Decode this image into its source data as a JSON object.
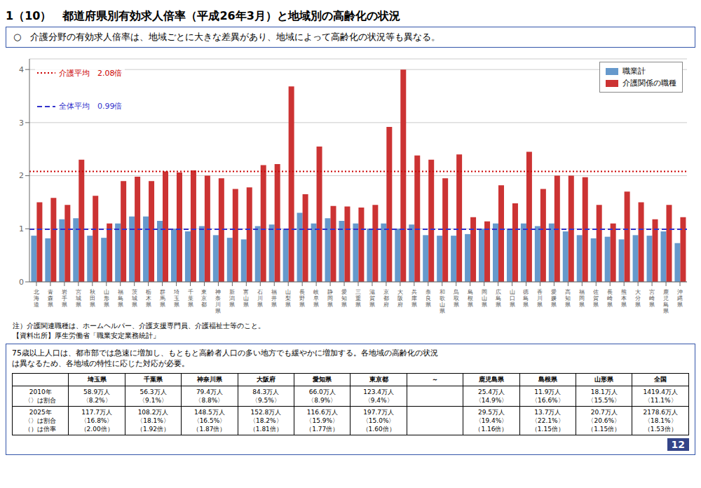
{
  "chart_data": {
    "type": "bar",
    "title": "1（10）　都道府県別有効求人倍率（平成26年3月）と地域別の高齢化の状況",
    "subtitle": "○　介護分野の有効求人倍率は、地域ごとに大きな差異があり、地域によって高齢化の状況等も異なる。",
    "categories": [
      "北海道",
      "青森県",
      "岩手県",
      "宮城県",
      "秋田県",
      "山形県",
      "福島県",
      "茨城県",
      "栃木県",
      "群馬県",
      "埼玉県",
      "千葉県",
      "東京都",
      "神奈川県",
      "新潟県",
      "富山県",
      "石川県",
      "福井県",
      "山梨県",
      "長野県",
      "岐阜県",
      "静岡県",
      "愛知県",
      "三重県",
      "滋賀県",
      "京都府",
      "大阪府",
      "兵庫県",
      "奈良県",
      "和歌山県",
      "鳥取県",
      "島根県",
      "岡山県",
      "広島県",
      "山口県",
      "徳島県",
      "香川県",
      "愛媛県",
      "高知県",
      "福岡県",
      "佐賀県",
      "長崎県",
      "熊本県",
      "大分県",
      "宮崎県",
      "鹿児島県",
      "沖縄県"
    ],
    "series": [
      {
        "name": "職業計",
        "color": "#6699CC",
        "values": [
          0.87,
          0.82,
          1.18,
          1.2,
          0.87,
          0.83,
          1.1,
          1.23,
          1.23,
          1.15,
          1.0,
          0.95,
          1.05,
          0.88,
          0.83,
          0.8,
          1.05,
          1.08,
          1.0,
          1.3,
          1.1,
          1.2,
          1.15,
          1.1,
          1.0,
          1.1,
          1.0,
          1.08,
          0.88,
          0.87,
          0.87,
          0.9,
          1.0,
          1.1,
          1.0,
          1.1,
          1.05,
          1.1,
          0.95,
          0.88,
          0.82,
          0.85,
          0.8,
          0.88,
          0.87,
          0.95,
          0.73
        ]
      },
      {
        "name": "介護関係の職種",
        "color": "#CC3333",
        "values": [
          1.5,
          1.58,
          1.45,
          2.3,
          1.62,
          1.1,
          1.9,
          1.98,
          1.9,
          2.08,
          2.06,
          2.1,
          2.0,
          1.95,
          1.75,
          1.78,
          2.2,
          2.22,
          3.68,
          1.65,
          2.55,
          1.43,
          1.42,
          1.4,
          1.45,
          2.92,
          4.0,
          2.38,
          2.3,
          1.95,
          2.4,
          1.22,
          1.14,
          1.82,
          1.48,
          2.45,
          1.75,
          2.0,
          2.0,
          1.97,
          1.45,
          1.1,
          1.7,
          1.5,
          1.18,
          1.45,
          1.22
        ]
      }
    ],
    "reference_lines": [
      {
        "name": "介護平均　2.08倍",
        "value": 2.08,
        "color": "#CC0000",
        "line_style": "dotted"
      },
      {
        "name": "全体平均　0.99倍",
        "value": 0.99,
        "color": "#3333CC",
        "line_style": "dashed"
      }
    ],
    "ylim": [
      0,
      4.2
    ],
    "yticks": [
      0,
      1,
      2,
      3,
      4
    ],
    "grid": true,
    "legend": "top-right",
    "notes": [
      "注）介護関連職種は、ホームヘルパー、介護支援専門員、介護福祉士等のこと。",
      "【資料出所】厚生労働省「職業安定業務統計」"
    ],
    "bottom_text": "75歳以上人口は、都市部では急速に増加し、もともと高齢者人口の多い地方でも緩やかに増加する。各地域の高齢化の状況\nは異なるため、各地域の特性に応じた対応が必要。",
    "table": {
      "headers": [
        null,
        "埼玉県",
        "千葉県",
        "神奈川県",
        "大阪府",
        "愛知県",
        "東京都",
        "～",
        "鹿児島県",
        "島根県",
        "山形県",
        "全国"
      ],
      "rows": [
        [
          "2010年\n〈〉は割合",
          "58.9万人\n〈8.2%〉",
          "56.3万人\n〈9.1%〉",
          "79.4万人\n〈8.8%〉",
          "84.3万人\n〈9.5%〉",
          "66.0万人\n〈8.9%〉",
          "123.4万人\n〈9.4%〉",
          null,
          "25.4万人\n〈14.9%〉",
          "11.9万人\n〈16.6%〉",
          "18.1万人\n〈15.5%〉",
          "1419.4万人\n〈11.1%〉"
        ],
        [
          "2025年\n〈〉は割合\n（）は倍率",
          "117.7万人\n〈16.8%〉\n（2.00倍）",
          "108.2万人\n〈18.1%〉\n（1.92倍）",
          "148.5万人\n〈16.5%〉\n（1.87倍）",
          "152.8万人\n〈18.2%〉\n（1.81倍）",
          "116.6万人\n〈15.9%〉\n（1.77倍）",
          "197.7万人\n〈15.0%〉\n（1.60倍）",
          null,
          "29.5万人\n〈19.4%〉\n（1.16倍）",
          "13.7万人\n〈22.1%〉\n（1.15倍）",
          "20.7万人\n〈20.6%〉\n（1.15倍）",
          "2178.6万人\n〈18.1%〉\n（1.53倍）"
        ]
      ]
    },
    "page_number": "12"
  }
}
